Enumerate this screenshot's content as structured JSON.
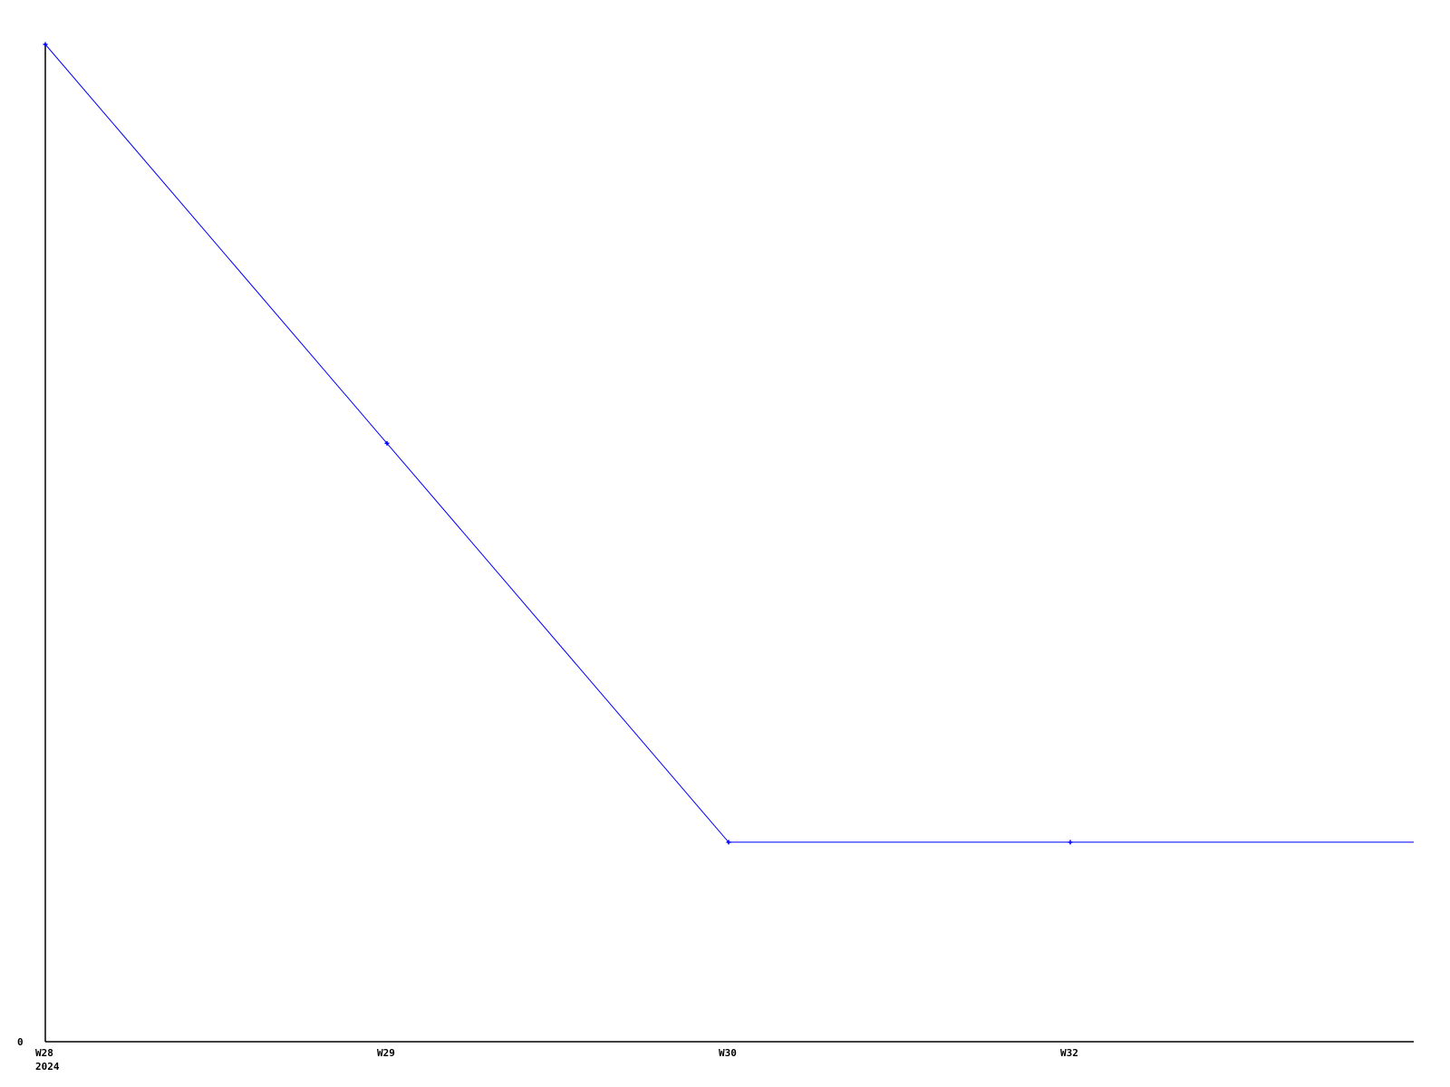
{
  "chart_data": {
    "type": "line",
    "title": "",
    "xlabel": "",
    "ylabel": "",
    "categories": [
      "W28",
      "W29",
      "W30",
      "W32"
    ],
    "x_sublabel": {
      "W28": "2024"
    },
    "y_tick_labels": [
      "0"
    ],
    "ylim": [
      0,
      5
    ],
    "grid": false,
    "series": [
      {
        "values": [
          5,
          3,
          1,
          1
        ],
        "color": "#0000ff",
        "extends_to_right_edge": true
      }
    ]
  }
}
